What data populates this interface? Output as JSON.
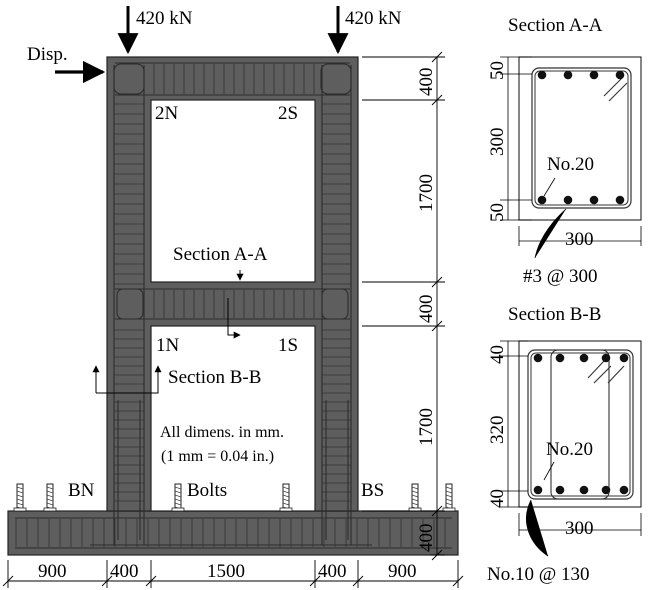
{
  "loads": {
    "left": "420 kN",
    "right": "420 kN"
  },
  "disp_label": "Disp.",
  "joint_labels": {
    "upper_north": "2N",
    "upper_south": "2S",
    "lower_north": "1N",
    "lower_south": "1S"
  },
  "section_refs": {
    "a": "Section A-A",
    "b": "Section B-B"
  },
  "notes": {
    "line1": "All dimens. in mm.",
    "line2": "(1 mm = 0.04 in.)"
  },
  "labels": {
    "bolts": "Bolts",
    "base_north": "BN",
    "base_south": "BS"
  },
  "vertical_dims": [
    "400",
    "1700",
    "400",
    "1700",
    "400"
  ],
  "horizontal_dims": [
    "900",
    "400",
    "1500",
    "400",
    "900"
  ],
  "section_a": {
    "title": "Section A-A",
    "cover_dims": [
      "50",
      "300",
      "50"
    ],
    "width_dim": "300",
    "bar_label": "No.20",
    "stirrup_label": "#3 @ 300"
  },
  "section_b": {
    "title": "Section B-B",
    "cover_dims": [
      "40",
      "320",
      "40"
    ],
    "width_dim": "300",
    "bar_label": "No.20",
    "stirrup_label": "No.10 @ 130"
  },
  "colors": {
    "concrete": "#5a5a5a",
    "rebar_line": "#2c2c2c",
    "opening": "#ffffff"
  }
}
